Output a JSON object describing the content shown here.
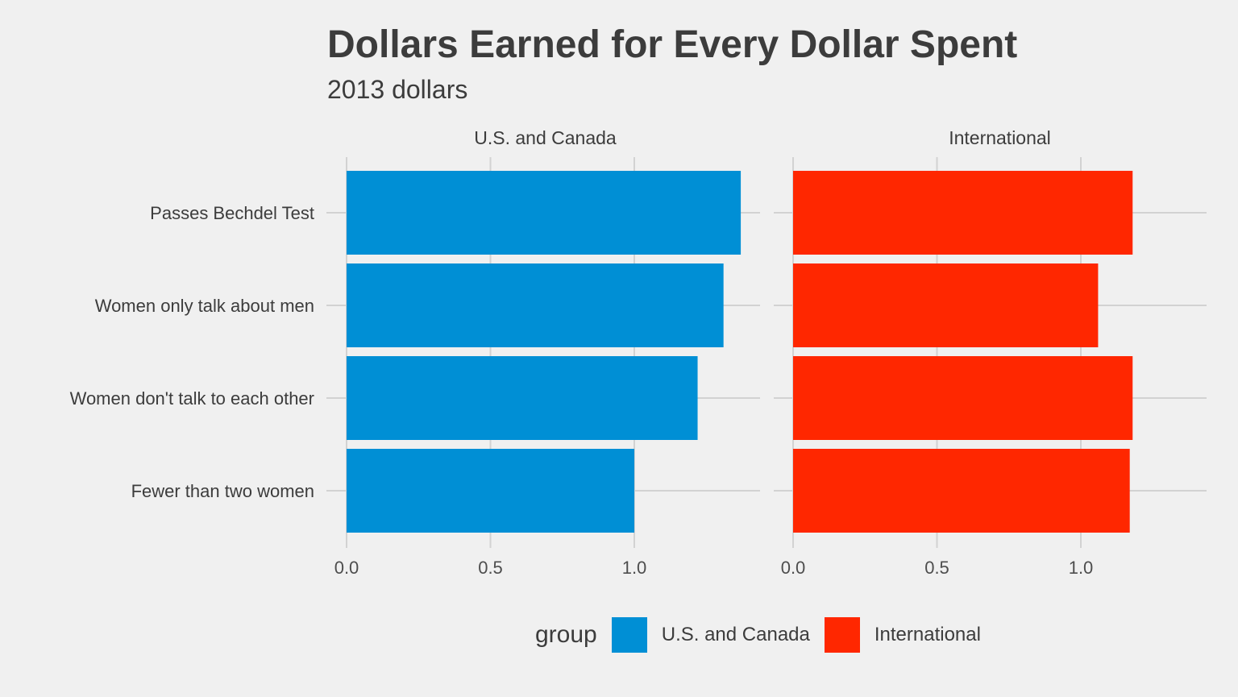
{
  "title": "Dollars Earned for Every Dollar Spent",
  "subtitle": "2013 dollars",
  "legend": {
    "title": "group",
    "items": [
      {
        "label": "U.S. and Canada",
        "color": "#008fd5"
      },
      {
        "label": "International",
        "color": "#ff2700"
      }
    ]
  },
  "chart_data": {
    "type": "bar",
    "orientation": "horizontal",
    "faceted": true,
    "title": "Dollars Earned for Every Dollar Spent",
    "subtitle": "2013 dollars",
    "categories": [
      "Passes Bechdel Test",
      "Women only talk about men",
      "Women don't talk to each other",
      "Fewer than two women"
    ],
    "xlim": [
      0,
      1.4
    ],
    "x_ticks": [
      "0.0",
      "0.5",
      "1.0"
    ],
    "x_tick_values": [
      0,
      0.5,
      1.0
    ],
    "grid": true,
    "legend_position": "bottom",
    "series": [
      {
        "name": "U.S. and Canada",
        "color": "#008fd5",
        "values": [
          1.37,
          1.31,
          1.22,
          1.0
        ]
      },
      {
        "name": "International",
        "color": "#ff2700",
        "values": [
          1.18,
          1.06,
          1.18,
          1.17
        ]
      }
    ]
  }
}
